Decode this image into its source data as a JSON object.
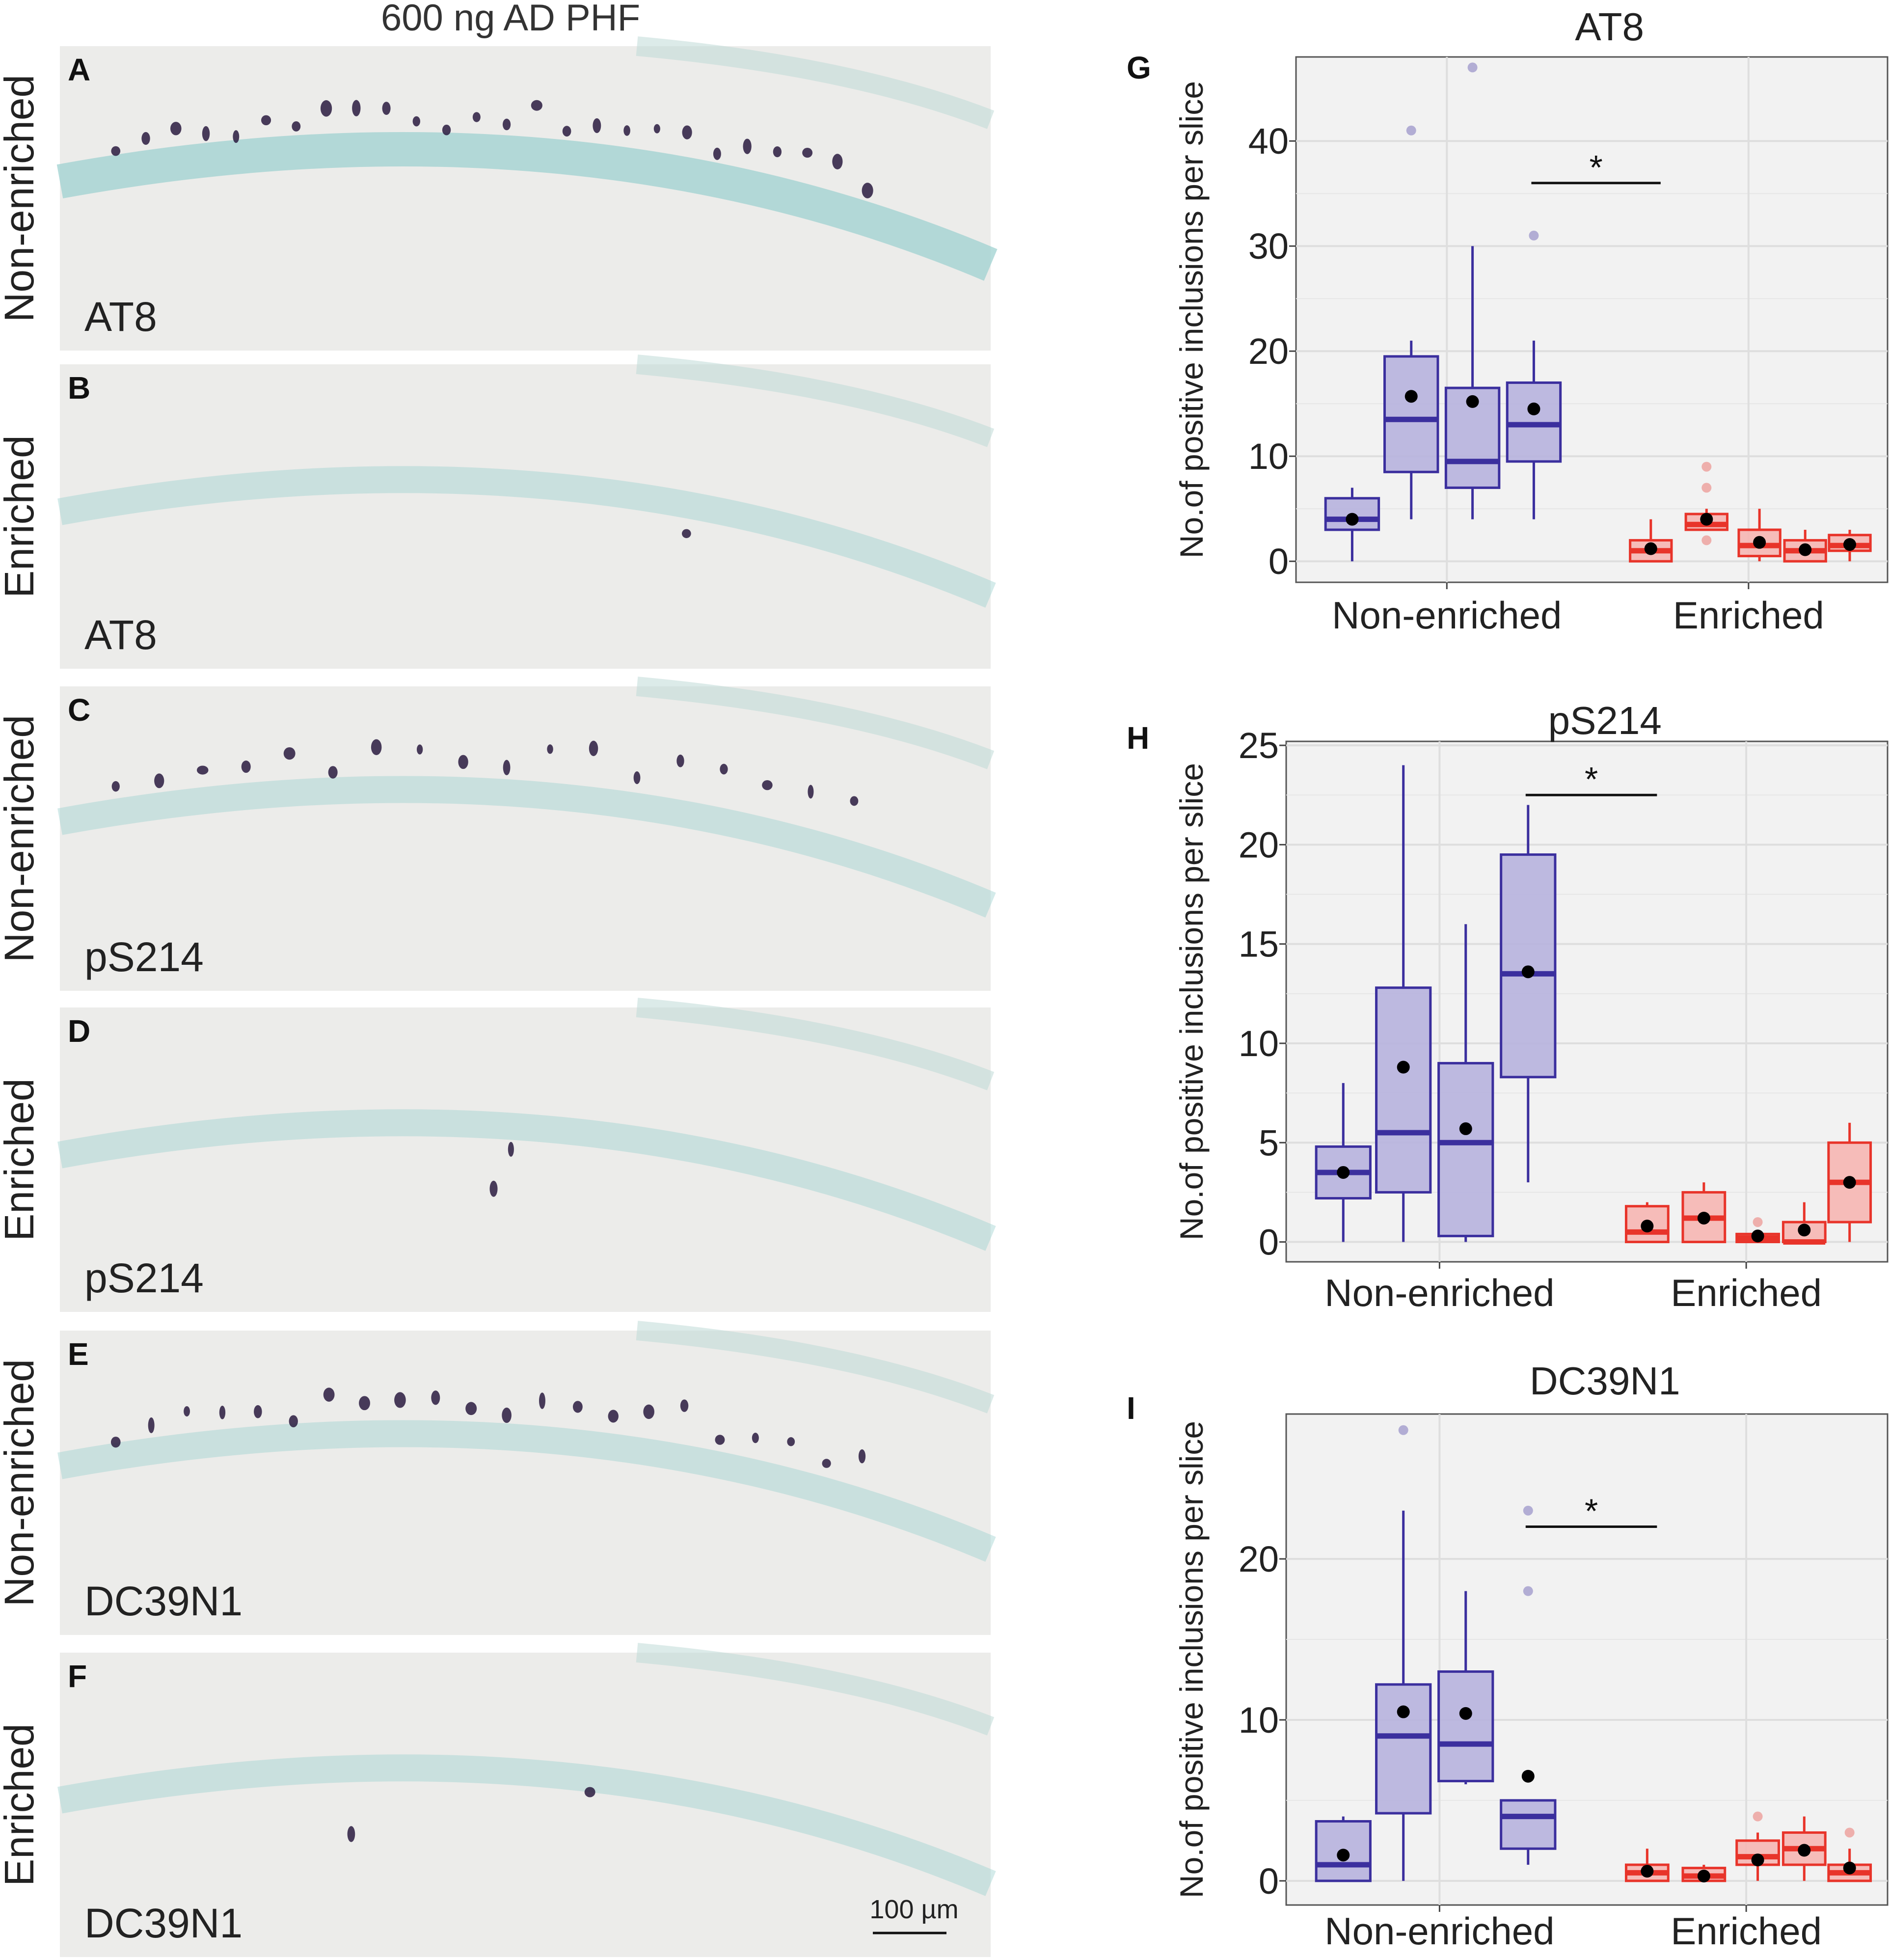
{
  "left_header": "600 ng AD PHF",
  "micrographs": [
    {
      "letter": "A",
      "group": "Non-enriched",
      "stain": "AT8"
    },
    {
      "letter": "B",
      "group": "Enriched",
      "stain": "AT8"
    },
    {
      "letter": "C",
      "group": "Non-enriched",
      "stain": "pS214"
    },
    {
      "letter": "D",
      "group": "Enriched",
      "stain": "pS214"
    },
    {
      "letter": "E",
      "group": "Non-enriched",
      "stain": "DC39N1"
    },
    {
      "letter": "F",
      "group": "Enriched",
      "stain": "DC39N1"
    }
  ],
  "scale_bar_label": "100 µm",
  "colors": {
    "non_enriched": "#3b2f9e",
    "non_enriched_fill": "#b7b3de",
    "enriched": "#e8342a",
    "enriched_fill": "#f6b6b2",
    "panel_bg": "#f2f2f2",
    "grid": "#ffffff"
  },
  "chart_data": [
    {
      "type": "box",
      "letter": "G",
      "title": "AT8",
      "ylabel": "No.of positive inclusions per slice",
      "categories": [
        "Non-enriched",
        "Enriched"
      ],
      "ylim": [
        -2,
        48
      ],
      "yticks": [
        0,
        10,
        20,
        30,
        40
      ],
      "significance": "*",
      "boxes": [
        {
          "group": "Non-enriched",
          "min": 0,
          "q1": 3,
          "median": 4,
          "q3": 6,
          "max": 7,
          "mean": 4,
          "outliers": []
        },
        {
          "group": "Non-enriched",
          "min": 4,
          "q1": 8.5,
          "median": 13.5,
          "q3": 19.5,
          "max": 21,
          "mean": 15.7,
          "outliers": [
            41
          ]
        },
        {
          "group": "Non-enriched",
          "min": 4,
          "q1": 7,
          "median": 9.5,
          "q3": 16.5,
          "max": 30,
          "mean": 15.2,
          "outliers": [
            47
          ]
        },
        {
          "group": "Non-enriched",
          "min": 4,
          "q1": 9.5,
          "median": 13,
          "q3": 17,
          "max": 21,
          "mean": 14.5,
          "outliers": [
            31
          ]
        },
        {
          "group": "Enriched",
          "min": 0,
          "q1": 0,
          "median": 1,
          "q3": 2,
          "max": 4,
          "mean": 1.2,
          "outliers": []
        },
        {
          "group": "Enriched",
          "min": 3,
          "q1": 3,
          "median": 3.5,
          "q3": 4.5,
          "max": 5,
          "mean": 4,
          "outliers": [
            2,
            7,
            9
          ]
        },
        {
          "group": "Enriched",
          "min": 0,
          "q1": 0.5,
          "median": 1.5,
          "q3": 3,
          "max": 5,
          "mean": 1.8,
          "outliers": []
        },
        {
          "group": "Enriched",
          "min": 0,
          "q1": 0,
          "median": 1,
          "q3": 2,
          "max": 3,
          "mean": 1.1,
          "outliers": []
        },
        {
          "group": "Enriched",
          "min": 0,
          "q1": 1,
          "median": 1.5,
          "q3": 2.5,
          "max": 3,
          "mean": 1.6,
          "outliers": []
        }
      ]
    },
    {
      "type": "box",
      "letter": "H",
      "title": "pS214",
      "ylabel": "No.of positive inclusions per slice",
      "categories": [
        "Non-enriched",
        "Enriched"
      ],
      "ylim": [
        -1,
        25.2
      ],
      "yticks": [
        0,
        5,
        10,
        15,
        20,
        25
      ],
      "significance": "*",
      "boxes": [
        {
          "group": "Non-enriched",
          "min": 0,
          "q1": 2.2,
          "median": 3.5,
          "q3": 4.8,
          "max": 8,
          "mean": 3.5,
          "outliers": []
        },
        {
          "group": "Non-enriched",
          "min": 0,
          "q1": 2.5,
          "median": 5.5,
          "q3": 12.8,
          "max": 24,
          "mean": 8.8,
          "outliers": []
        },
        {
          "group": "Non-enriched",
          "min": 0,
          "q1": 0.3,
          "median": 5,
          "q3": 9,
          "max": 16,
          "mean": 5.7,
          "outliers": []
        },
        {
          "group": "Non-enriched",
          "min": 3,
          "q1": 8.3,
          "median": 13.5,
          "q3": 19.5,
          "max": 22,
          "mean": 13.6,
          "outliers": []
        },
        {
          "group": "Enriched",
          "min": 0,
          "q1": 0,
          "median": 0.5,
          "q3": 1.8,
          "max": 2,
          "mean": 0.8,
          "outliers": []
        },
        {
          "group": "Enriched",
          "min": 0,
          "q1": 0,
          "median": 1.2,
          "q3": 2.5,
          "max": 3,
          "mean": 1.2,
          "outliers": []
        },
        {
          "group": "Enriched",
          "min": 0,
          "q1": 0,
          "median": 0.2,
          "q3": 0.4,
          "max": 0.4,
          "mean": 0.3,
          "outliers": [
            1
          ]
        },
        {
          "group": "Enriched",
          "min": 0,
          "q1": 0,
          "median": 0,
          "q3": 1,
          "max": 2,
          "mean": 0.6,
          "outliers": []
        },
        {
          "group": "Enriched",
          "min": 0,
          "q1": 1,
          "median": 3,
          "q3": 5,
          "max": 6,
          "mean": 3,
          "outliers": []
        }
      ]
    },
    {
      "type": "box",
      "letter": "I",
      "title": "DC39N1",
      "ylabel": "No.of positive inclusions per slice",
      "categories": [
        "Non-enriched",
        "Enriched"
      ],
      "ylim": [
        -1.5,
        29
      ],
      "yticks": [
        0,
        10,
        20
      ],
      "significance": "*",
      "boxes": [
        {
          "group": "Non-enriched",
          "min": 0,
          "q1": 0,
          "median": 1,
          "q3": 3.7,
          "max": 4,
          "mean": 1.6,
          "outliers": []
        },
        {
          "group": "Non-enriched",
          "min": 0,
          "q1": 4.2,
          "median": 9,
          "q3": 12.2,
          "max": 23,
          "mean": 10.5,
          "outliers": [
            28
          ]
        },
        {
          "group": "Non-enriched",
          "min": 6,
          "q1": 6.2,
          "median": 8.5,
          "q3": 13,
          "max": 18,
          "mean": 10.4,
          "outliers": []
        },
        {
          "group": "Non-enriched",
          "min": 1,
          "q1": 2,
          "median": 4,
          "q3": 5,
          "max": 5,
          "mean": 6.5,
          "outliers": [
            18,
            23
          ]
        },
        {
          "group": "Enriched",
          "min": 0,
          "q1": 0,
          "median": 0.5,
          "q3": 1,
          "max": 2,
          "mean": 0.6,
          "outliers": []
        },
        {
          "group": "Enriched",
          "min": 0,
          "q1": 0,
          "median": 0.3,
          "q3": 0.8,
          "max": 1,
          "mean": 0.3,
          "outliers": []
        },
        {
          "group": "Enriched",
          "min": 0,
          "q1": 1,
          "median": 1.5,
          "q3": 2.5,
          "max": 3,
          "mean": 1.3,
          "outliers": [
            4
          ]
        },
        {
          "group": "Enriched",
          "min": 0,
          "q1": 1,
          "median": 2,
          "q3": 3,
          "max": 4,
          "mean": 1.9,
          "outliers": []
        },
        {
          "group": "Enriched",
          "min": 0,
          "q1": 0,
          "median": 0.5,
          "q3": 1,
          "max": 2,
          "mean": 0.8,
          "outliers": [
            3
          ]
        }
      ]
    }
  ]
}
